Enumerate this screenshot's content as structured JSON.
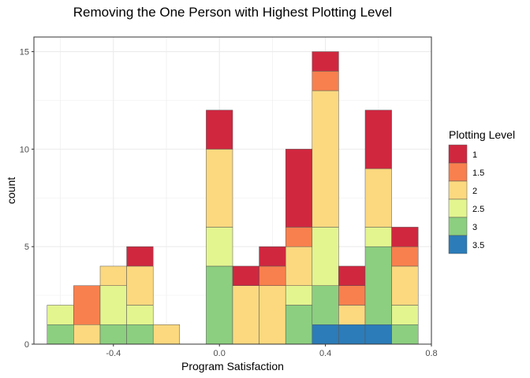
{
  "chart_data": {
    "type": "bar",
    "subtype": "stacked-histogram",
    "title": "Removing the One Person with Highest Plotting Level",
    "xlabel": "Program Satisfaction",
    "ylabel": "count",
    "xlim": [
      -0.7,
      0.8
    ],
    "ylim": [
      0,
      15.75
    ],
    "x_ticks": [
      -0.4,
      0.0,
      0.4,
      0.8
    ],
    "x_tick_labels": [
      "-0.4",
      "0.0",
      "0.4",
      "0.8"
    ],
    "y_ticks": [
      0,
      5,
      10,
      15
    ],
    "y_tick_labels": [
      "0",
      "5",
      "10",
      "15"
    ],
    "bin_width": 0.1,
    "grid": true,
    "legend_position": "right",
    "legend": {
      "title": "Plotting Level",
      "entries": [
        {
          "label": "1",
          "color": "#d0273f"
        },
        {
          "label": "1.5",
          "color": "#f8804e"
        },
        {
          "label": "2",
          "color": "#fcd97f"
        },
        {
          "label": "2.5",
          "color": "#e3f58f"
        },
        {
          "label": "3",
          "color": "#8ccf80"
        },
        {
          "label": "3.5",
          "color": "#2b7cb9"
        }
      ]
    },
    "bins": [
      -0.6,
      -0.5,
      -0.4,
      -0.3,
      -0.2,
      -0.1,
      0.0,
      0.1,
      0.2,
      0.3,
      0.4,
      0.5,
      0.6,
      0.7
    ],
    "series": [
      {
        "name": "3.5",
        "values": [
          0,
          0,
          0,
          0,
          0,
          0,
          0,
          0,
          0,
          0,
          1,
          1,
          1,
          0
        ]
      },
      {
        "name": "3",
        "values": [
          1,
          0,
          1,
          1,
          0,
          0,
          4,
          0,
          0,
          2,
          2,
          0,
          4,
          1
        ]
      },
      {
        "name": "2.5",
        "values": [
          1,
          0,
          2,
          1,
          0,
          0,
          2,
          0,
          0,
          1,
          3,
          0,
          1,
          1
        ]
      },
      {
        "name": "2",
        "values": [
          0,
          1,
          1,
          2,
          1,
          0,
          4,
          3,
          3,
          2,
          7,
          1,
          3,
          2
        ]
      },
      {
        "name": "1.5",
        "values": [
          0,
          2,
          0,
          0,
          0,
          0,
          0,
          0,
          1,
          1,
          1,
          1,
          0,
          1
        ]
      },
      {
        "name": "1",
        "values": [
          0,
          0,
          0,
          1,
          0,
          0,
          2,
          1,
          1,
          4,
          1,
          1,
          3,
          1
        ]
      }
    ]
  }
}
